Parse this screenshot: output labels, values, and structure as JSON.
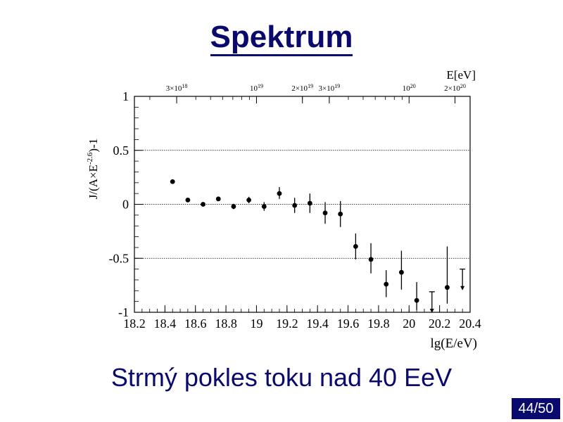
{
  "slide": {
    "title": "Spektrum",
    "caption": "Strmý pokles toku nad 40 EeV",
    "page_number": "44/50"
  },
  "colors": {
    "title": "#0a0a6e",
    "page_badge": "#0a0a6e",
    "data": "#000000"
  },
  "chart_data": {
    "type": "scatter",
    "xlabel": "lg(E/eV)",
    "ylabel": "J/(A×E^-2.6)-1",
    "ylabel_parts": {
      "base": "J/(A×E",
      "sup": "-2.6",
      "tail": ")-1"
    },
    "xlim": [
      18.2,
      20.4
    ],
    "ylim": [
      -1.0,
      1.0
    ],
    "x_ticks": [
      "18.2",
      "18.4",
      "18.6",
      "18.8",
      "19",
      "19.2",
      "19.4",
      "19.6",
      "19.8",
      "20",
      "20.2",
      "20.4"
    ],
    "y_ticks": [
      {
        "value": 1,
        "label": "1"
      },
      {
        "value": 0.5,
        "label": "0.5"
      },
      {
        "value": 0,
        "label": "0"
      },
      {
        "value": -0.5,
        "label": "-0.5"
      },
      {
        "value": -1,
        "label": "-1"
      }
    ],
    "gridlines_y": [
      0.5,
      0,
      -0.5,
      -1
    ],
    "top_axis": {
      "label": "E[eV]",
      "ticks": [
        {
          "lg": 18.477,
          "base": "3×10",
          "exp": "18"
        },
        {
          "lg": 19.0,
          "base": "10",
          "exp": "19"
        },
        {
          "lg": 19.301,
          "base": "2×10",
          "exp": "19"
        },
        {
          "lg": 19.477,
          "base": "3×10",
          "exp": "19"
        },
        {
          "lg": 20.0,
          "base": "10",
          "exp": "20"
        },
        {
          "lg": 20.301,
          "base": "2×10",
          "exp": "20"
        }
      ]
    },
    "points": [
      {
        "x": 18.45,
        "y": 0.21,
        "lo": 0.2,
        "hi": 0.22
      },
      {
        "x": 18.55,
        "y": 0.04,
        "lo": 0.025,
        "hi": 0.055
      },
      {
        "x": 18.65,
        "y": 0.0,
        "lo": -0.015,
        "hi": 0.015
      },
      {
        "x": 18.75,
        "y": 0.05,
        "lo": 0.03,
        "hi": 0.07
      },
      {
        "x": 18.85,
        "y": -0.02,
        "lo": -0.045,
        "hi": 0.005
      },
      {
        "x": 18.95,
        "y": 0.04,
        "lo": 0.01,
        "hi": 0.07
      },
      {
        "x": 19.05,
        "y": -0.02,
        "lo": -0.06,
        "hi": 0.02
      },
      {
        "x": 19.15,
        "y": 0.1,
        "lo": 0.05,
        "hi": 0.16
      },
      {
        "x": 19.25,
        "y": -0.01,
        "lo": -0.08,
        "hi": 0.06
      },
      {
        "x": 19.35,
        "y": 0.01,
        "lo": -0.08,
        "hi": 0.1
      },
      {
        "x": 19.45,
        "y": -0.08,
        "lo": -0.18,
        "hi": 0.02
      },
      {
        "x": 19.55,
        "y": -0.09,
        "lo": -0.21,
        "hi": 0.03
      },
      {
        "x": 19.65,
        "y": -0.39,
        "lo": -0.51,
        "hi": -0.27
      },
      {
        "x": 19.75,
        "y": -0.51,
        "lo": -0.64,
        "hi": -0.36
      },
      {
        "x": 19.85,
        "y": -0.74,
        "lo": -0.86,
        "hi": -0.61
      },
      {
        "x": 19.95,
        "y": -0.63,
        "lo": -0.79,
        "hi": -0.43
      },
      {
        "x": 20.05,
        "y": -0.89,
        "lo": -0.98,
        "hi": -0.72
      },
      {
        "x": 20.25,
        "y": -0.77,
        "lo": -0.92,
        "hi": -0.39
      }
    ],
    "upper_limits": [
      {
        "x": 20.15,
        "y": -0.81,
        "to": -1.0
      },
      {
        "x": 20.35,
        "y": -0.6,
        "to": -0.79
      }
    ]
  }
}
